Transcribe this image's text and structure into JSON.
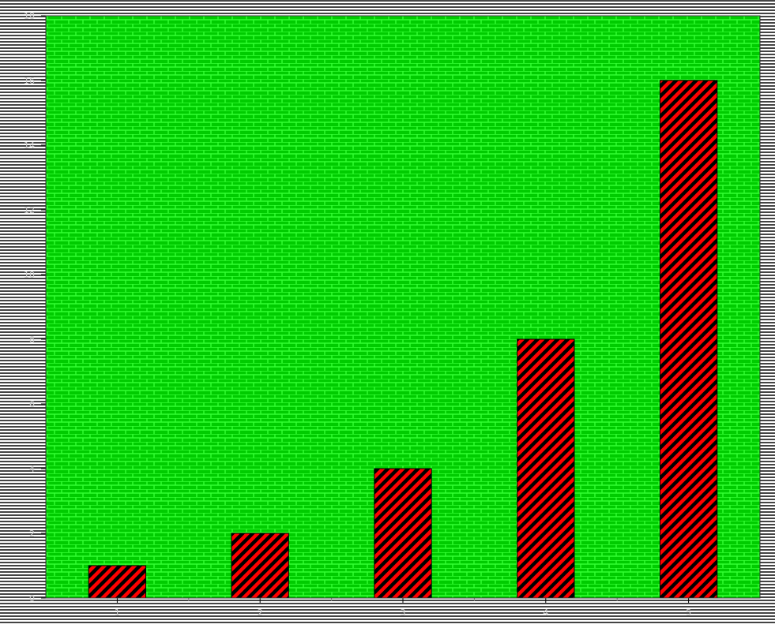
{
  "chart_data": {
    "type": "bar",
    "title": "",
    "xlabel": "",
    "ylabel": "",
    "categories": [
      "1",
      "2",
      "3",
      "4",
      "5"
    ],
    "values": [
      1,
      2,
      4,
      8,
      16
    ],
    "ylim": [
      0,
      18
    ],
    "yticks": [
      0,
      2,
      4,
      6,
      8,
      10,
      12,
      14,
      16,
      18
    ],
    "grid": false,
    "legend": "none",
    "colors": {
      "plot_background": "#00cc00",
      "brick_lines": "#33ff33",
      "bar_fill": "#ff0000",
      "bar_hatch": "#000000",
      "frame_stripe_dark": "#444444",
      "frame_stripe_light": "#ffffff",
      "tick_text": "#cccccc"
    },
    "patterns": {
      "plot_background": "brick",
      "bar": "diagonal-hatch",
      "frame": "horizontal-stripes"
    }
  }
}
